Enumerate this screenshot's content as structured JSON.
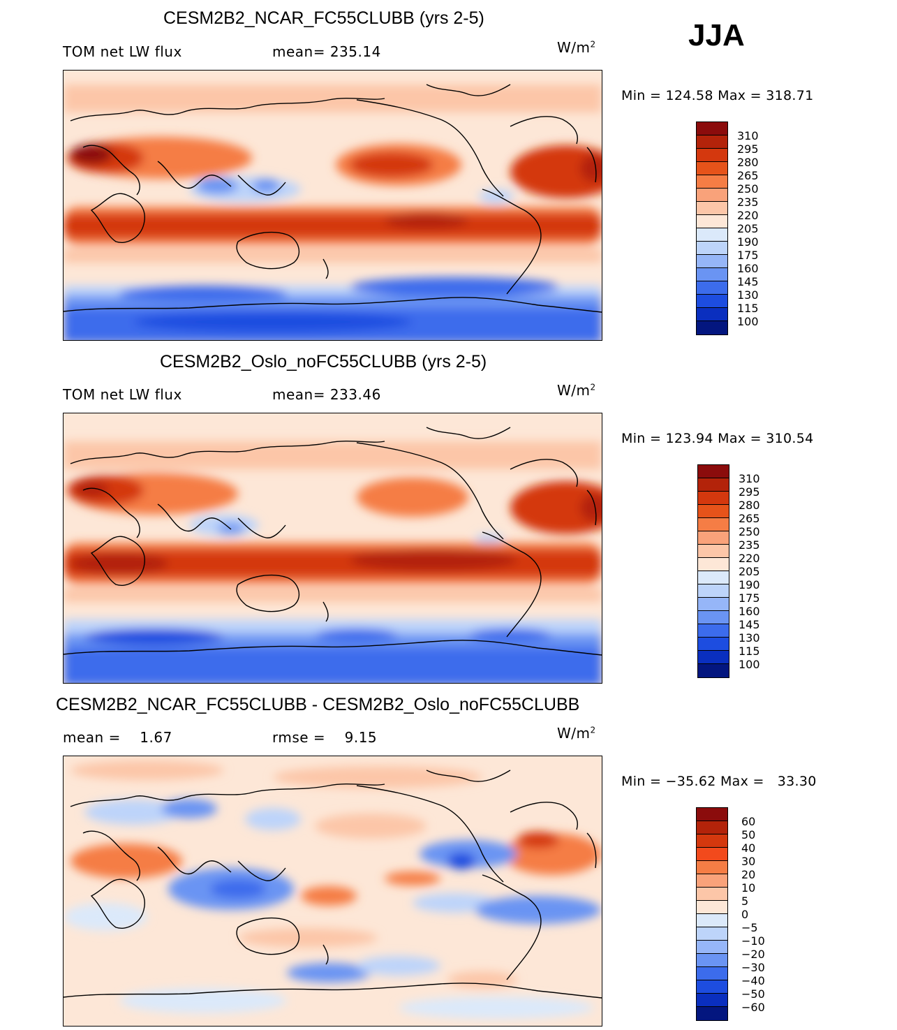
{
  "season": "JJA",
  "units_base": "W/m",
  "units_exp": "2",
  "panels": [
    {
      "title": "CESM2B2_NCAR_FC55CLUBB (yrs 2-5)",
      "left_label": "TOM net LW flux",
      "right_label": "mean= 235.14",
      "minmax": "Min = 124.58 Max = 318.71"
    },
    {
      "title": "CESM2B2_Oslo_noFC55CLUBB (yrs 2-5)",
      "left_label": "TOM net LW flux",
      "right_label": "mean= 233.46",
      "minmax": "Min = 123.94 Max = 310.54"
    },
    {
      "title": "CESM2B2_NCAR_FC55CLUBB - CESM2B2_Oslo_noFC55CLUBB",
      "left_label": "mean =    1.67",
      "right_label": "rmse =    9.15",
      "minmax": "Min = −35.62 Max =   33.30"
    }
  ],
  "colorbars": {
    "abs": {
      "labels": [
        "310",
        "295",
        "280",
        "265",
        "250",
        "235",
        "220",
        "205",
        "190",
        "175",
        "160",
        "145",
        "130",
        "115",
        "100"
      ],
      "colors": [
        "#8b0c0c",
        "#b3230a",
        "#d4380e",
        "#e6531a",
        "#f57d45",
        "#f9a27a",
        "#fcc6a8",
        "#fde7d7",
        "#dbe9fa",
        "#bdd4fa",
        "#96b6f8",
        "#6a94f3",
        "#3c6cec",
        "#1d4de0",
        "#0a2fbf",
        "#03167f"
      ]
    },
    "diff": {
      "labels": [
        "60",
        "50",
        "40",
        "30",
        "20",
        "10",
        "5",
        "0",
        "−5",
        "−10",
        "−20",
        "−30",
        "−40",
        "−50",
        "−60"
      ],
      "colors": [
        "#8b0c0c",
        "#b3230a",
        "#d4380e",
        "#f24a1c",
        "#f57d45",
        "#f9a27a",
        "#fcc6a8",
        "#fde7d7",
        "#dbe9fa",
        "#bdd4fa",
        "#96b6f8",
        "#6a94f3",
        "#3c6cec",
        "#1d4de0",
        "#0a2fbf",
        "#03167f"
      ]
    }
  },
  "map_palette": {
    "base_warm": "#fde7d7",
    "light_orange": "#fcc6a8",
    "orange": "#f57d45",
    "red": "#d4380e",
    "dark_red": "#b3230a",
    "darkest": "#8b0c0c",
    "light_blue": "#bdd4fa",
    "blue": "#6a94f3",
    "deep_blue": "#3c6cec",
    "navy": "#1d4de0",
    "pale_blue": "#dbe9fa"
  }
}
